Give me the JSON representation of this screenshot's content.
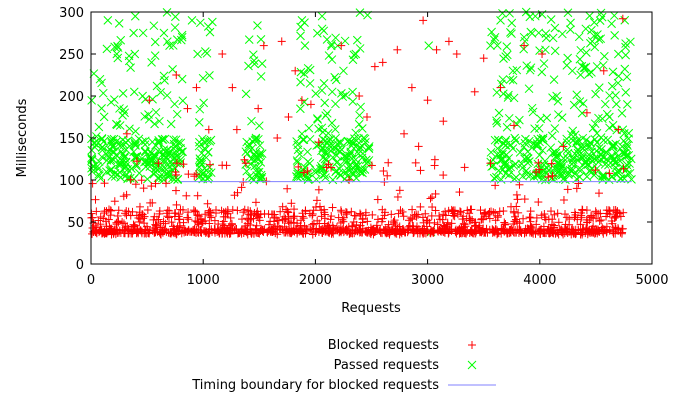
{
  "chart_data": {
    "type": "scatter",
    "title": "",
    "xlabel": "Requests",
    "ylabel": "Milliseconds",
    "xlim": [
      0,
      5000
    ],
    "ylim": [
      0,
      300
    ],
    "x_ticks": [
      0,
      1000,
      2000,
      3000,
      4000,
      5000
    ],
    "y_ticks": [
      0,
      50,
      100,
      150,
      200,
      250,
      300
    ],
    "grid": false,
    "legend_position": "bottom",
    "series": [
      {
        "name": "Blocked requests",
        "marker": "plus",
        "color": "#ff0000",
        "x_range": [
          0,
          4750
        ],
        "typical_y_range": [
          35,
          65
        ],
        "sample_points": [
          [
            40,
            38
          ],
          [
            200,
            36
          ],
          [
            320,
            155
          ],
          [
            400,
            95
          ],
          [
            520,
            195
          ],
          [
            600,
            120
          ],
          [
            760,
            225
          ],
          [
            860,
            185
          ],
          [
            940,
            210
          ],
          [
            1050,
            160
          ],
          [
            1170,
            250
          ],
          [
            1260,
            210
          ],
          [
            1300,
            160
          ],
          [
            1380,
            120
          ],
          [
            1490,
            185
          ],
          [
            1540,
            260
          ],
          [
            1660,
            150
          ],
          [
            1700,
            265
          ],
          [
            1760,
            175
          ],
          [
            1820,
            230
          ],
          [
            1880,
            195
          ],
          [
            1960,
            190
          ],
          [
            2030,
            145
          ],
          [
            2100,
            115
          ],
          [
            2230,
            260
          ],
          [
            2300,
            100
          ],
          [
            2390,
            200
          ],
          [
            2460,
            175
          ],
          [
            2530,
            235
          ],
          [
            2600,
            240
          ],
          [
            2640,
            105
          ],
          [
            2730,
            255
          ],
          [
            2790,
            155
          ],
          [
            2860,
            210
          ],
          [
            2920,
            140
          ],
          [
            2960,
            290
          ],
          [
            3000,
            195
          ],
          [
            3080,
            255
          ],
          [
            3140,
            170
          ],
          [
            3190,
            265
          ],
          [
            3260,
            250
          ],
          [
            3330,
            115
          ],
          [
            3420,
            205
          ],
          [
            3500,
            245
          ],
          [
            3560,
            120
          ],
          [
            3650,
            210
          ],
          [
            3770,
            165
          ],
          [
            3860,
            260
          ],
          [
            4020,
            250
          ],
          [
            4210,
            140
          ],
          [
            4330,
            90
          ],
          [
            4420,
            180
          ],
          [
            4570,
            230
          ],
          [
            4700,
            160
          ],
          [
            4740,
            292
          ]
        ]
      },
      {
        "name": "Passed requests",
        "marker": "cross",
        "color": "#00ff00",
        "x_range": [
          0,
          4820
        ],
        "typical_y_range": [
          100,
          150
        ],
        "sample_points": [
          [
            80,
            220
          ],
          [
            150,
            290
          ],
          [
            230,
            250
          ],
          [
            300,
            180
          ],
          [
            380,
            275
          ],
          [
            460,
            200
          ],
          [
            540,
            240
          ],
          [
            610,
            170
          ],
          [
            700,
            260
          ],
          [
            900,
            290
          ],
          [
            950,
            250
          ],
          [
            1010,
            145
          ],
          [
            1430,
            170
          ],
          [
            1470,
            150
          ],
          [
            1880,
            290
          ],
          [
            2060,
            280
          ],
          [
            2150,
            205
          ],
          [
            2250,
            230
          ],
          [
            2360,
            250
          ],
          [
            2430,
            150
          ],
          [
            3010,
            260
          ],
          [
            3030,
            38
          ],
          [
            3560,
            260
          ],
          [
            3650,
            290
          ],
          [
            3760,
            230
          ],
          [
            3860,
            270
          ],
          [
            3960,
            295
          ],
          [
            4050,
            255
          ],
          [
            4150,
            200
          ],
          [
            4290,
            230
          ],
          [
            4410,
            280
          ],
          [
            4530,
            210
          ],
          [
            4620,
            175
          ],
          [
            4700,
            250
          ],
          [
            4780,
            190
          ]
        ]
      },
      {
        "name": "Timing boundary for blocked requests",
        "marker": "line",
        "color": "#8080ff",
        "x": [
          800,
          4820
        ],
        "y": [
          98,
          98
        ]
      }
    ]
  }
}
